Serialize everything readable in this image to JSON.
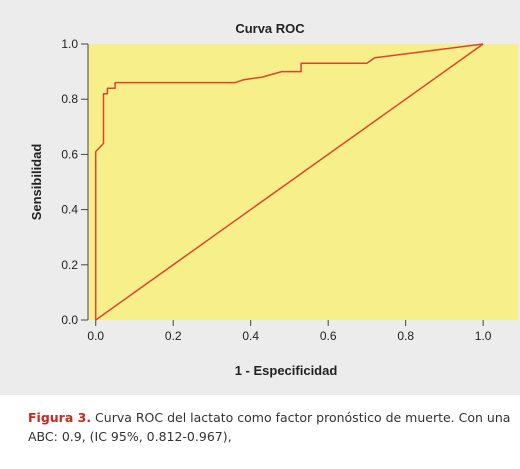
{
  "chart_data": {
    "type": "line",
    "title": "Curva ROC",
    "xlabel": "1 - Especificidad",
    "ylabel": "Sensibilidad",
    "xlim": [
      -0.02,
      1.09
    ],
    "ylim": [
      0.0,
      1.0
    ],
    "x_ticks": [
      "0.0",
      "0.2",
      "0.4",
      "0.6",
      "0.8",
      "1.0"
    ],
    "y_ticks": [
      "0.0",
      "0.2",
      "0.4",
      "0.6",
      "0.8",
      "1.0"
    ],
    "grid": false,
    "series": [
      {
        "color": "#e0432b",
        "x": [
          0.0,
          0.0,
          0.02,
          0.02,
          0.03,
          0.03,
          0.05,
          0.05,
          0.36,
          0.38,
          0.43,
          0.48,
          0.53,
          0.53,
          0.7,
          0.72,
          1.0
        ],
        "y": [
          0.0,
          0.61,
          0.64,
          0.82,
          0.82,
          0.84,
          0.84,
          0.86,
          0.86,
          0.87,
          0.88,
          0.9,
          0.9,
          0.93,
          0.93,
          0.95,
          1.0
        ]
      },
      {
        "color": "#e0432b",
        "x": [
          0.0,
          1.0
        ],
        "y": [
          0.0,
          1.0
        ]
      }
    ],
    "plot_background": "#f6ef8a",
    "figure_background": "#ececec"
  },
  "caption": {
    "label": "Figura 3.",
    "text": " Curva ROC del lactato como factor pronóstico de muerte. Con una ABC: 0.9, (IC 95%, 0.812-0.967),"
  }
}
